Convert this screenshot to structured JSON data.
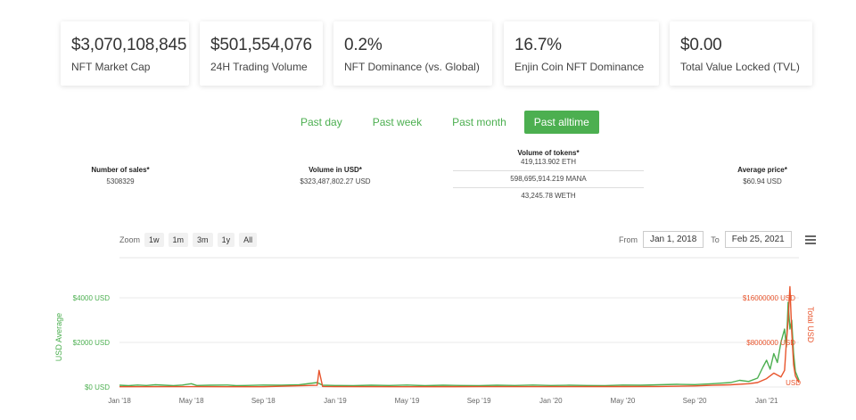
{
  "stats": [
    {
      "value": "$3,070,108,845",
      "label": "NFT Market Cap"
    },
    {
      "value": "$501,554,076",
      "label": "24H Trading Volume"
    },
    {
      "value": "0.2%",
      "label": "NFT Dominance (vs. Global)"
    },
    {
      "value": "16.7%",
      "label": "Enjin Coin NFT Dominance"
    },
    {
      "value": "$0.00",
      "label": "Total Value Locked (TVL)"
    }
  ],
  "periods": [
    "Past day",
    "Past week",
    "Past month",
    "Past alltime"
  ],
  "active_period": "Past alltime",
  "metrics": {
    "sales": {
      "label": "Number of sales*",
      "value": "5308329"
    },
    "volume_usd": {
      "label": "Volume in USD*",
      "value": "$323,487,802.27 USD"
    },
    "tokens": {
      "label": "Volume of tokens*",
      "values": [
        "419,113.902 ETH",
        "598,695,914.219 MANA",
        "43,245.78 WETH"
      ]
    },
    "avg_price": {
      "label": "Average price*",
      "value": "$60.94 USD"
    }
  },
  "zoom": {
    "label": "Zoom",
    "buttons": [
      "1w",
      "1m",
      "3m",
      "1y",
      "All"
    ]
  },
  "range": {
    "from_label": "From",
    "from": "Jan 1, 2018",
    "to_label": "To",
    "to": "Feb 25, 2021"
  },
  "chart_data": {
    "type": "line",
    "x_ticks": [
      "Jan '18",
      "May '18",
      "Sep '18",
      "Jan '19",
      "May '19",
      "Sep '19",
      "Jan '20",
      "May '20",
      "Sep '20",
      "Jan '21"
    ],
    "y_left": {
      "title": "USD Average",
      "ticks": [
        "$0 USD",
        "$2000 USD",
        "$4000 USD"
      ],
      "range": [
        0,
        4000
      ]
    },
    "y_right": {
      "title": "Total USD",
      "ticks": [
        "$8000000 USD",
        "$16000000 USD"
      ],
      "range": [
        0,
        16000000
      ]
    },
    "x_range": [
      0,
      37.8
    ],
    "series": [
      {
        "name": "USD Average",
        "axis": "left",
        "color": "#4caf50",
        "points": [
          [
            0,
            80
          ],
          [
            0.5,
            60
          ],
          [
            1,
            90
          ],
          [
            1.5,
            70
          ],
          [
            2,
            100
          ],
          [
            2.5,
            80
          ],
          [
            3,
            60
          ],
          [
            3.5,
            90
          ],
          [
            4,
            150
          ],
          [
            4.3,
            70
          ],
          [
            5,
            80
          ],
          [
            6,
            90
          ],
          [
            6.5,
            60
          ],
          [
            7,
            70
          ],
          [
            8,
            90
          ],
          [
            9,
            80
          ],
          [
            10,
            100
          ],
          [
            11,
            200
          ],
          [
            11.3,
            80
          ],
          [
            12,
            70
          ],
          [
            13,
            60
          ],
          [
            14,
            80
          ],
          [
            15,
            70
          ],
          [
            16,
            90
          ],
          [
            17,
            60
          ],
          [
            18,
            80
          ],
          [
            19,
            70
          ],
          [
            20,
            60
          ],
          [
            21,
            80
          ],
          [
            22,
            70
          ],
          [
            23,
            90
          ],
          [
            24,
            70
          ],
          [
            25,
            80
          ],
          [
            26,
            70
          ],
          [
            27,
            60
          ],
          [
            28,
            90
          ],
          [
            29,
            80
          ],
          [
            30,
            100
          ],
          [
            31,
            120
          ],
          [
            32,
            110
          ],
          [
            33,
            150
          ],
          [
            34,
            200
          ],
          [
            34.5,
            300
          ],
          [
            35,
            250
          ],
          [
            35.5,
            400
          ],
          [
            35.8,
            900
          ],
          [
            36,
            1200
          ],
          [
            36.2,
            800
          ],
          [
            36.4,
            1500
          ],
          [
            36.6,
            1100
          ],
          [
            36.8,
            2000
          ],
          [
            37,
            2600
          ],
          [
            37.1,
            1800
          ],
          [
            37.2,
            3800
          ],
          [
            37.3,
            2600
          ],
          [
            37.4,
            3000
          ],
          [
            37.5,
            1500
          ],
          [
            37.6,
            700
          ],
          [
            37.8,
            300
          ]
        ]
      },
      {
        "name": "Total USD",
        "axis": "right",
        "color": "#e8542c",
        "points": [
          [
            0,
            50000
          ],
          [
            4,
            60000
          ],
          [
            8,
            50000
          ],
          [
            11,
            300000
          ],
          [
            11.1,
            3000000
          ],
          [
            11.3,
            100000
          ],
          [
            12,
            60000
          ],
          [
            16,
            50000
          ],
          [
            20,
            60000
          ],
          [
            24,
            70000
          ],
          [
            28,
            80000
          ],
          [
            30,
            100000
          ],
          [
            32,
            200000
          ],
          [
            33,
            300000
          ],
          [
            34,
            400000
          ],
          [
            35,
            600000
          ],
          [
            35.5,
            800000
          ],
          [
            36,
            1500000
          ],
          [
            36.4,
            2500000
          ],
          [
            36.8,
            1800000
          ],
          [
            37,
            3000000
          ],
          [
            37.1,
            8000000
          ],
          [
            37.2,
            12000000
          ],
          [
            37.3,
            18000000
          ],
          [
            37.4,
            10000000
          ],
          [
            37.5,
            4000000
          ],
          [
            37.6,
            2000000
          ],
          [
            37.8,
            800000
          ]
        ]
      }
    ]
  }
}
